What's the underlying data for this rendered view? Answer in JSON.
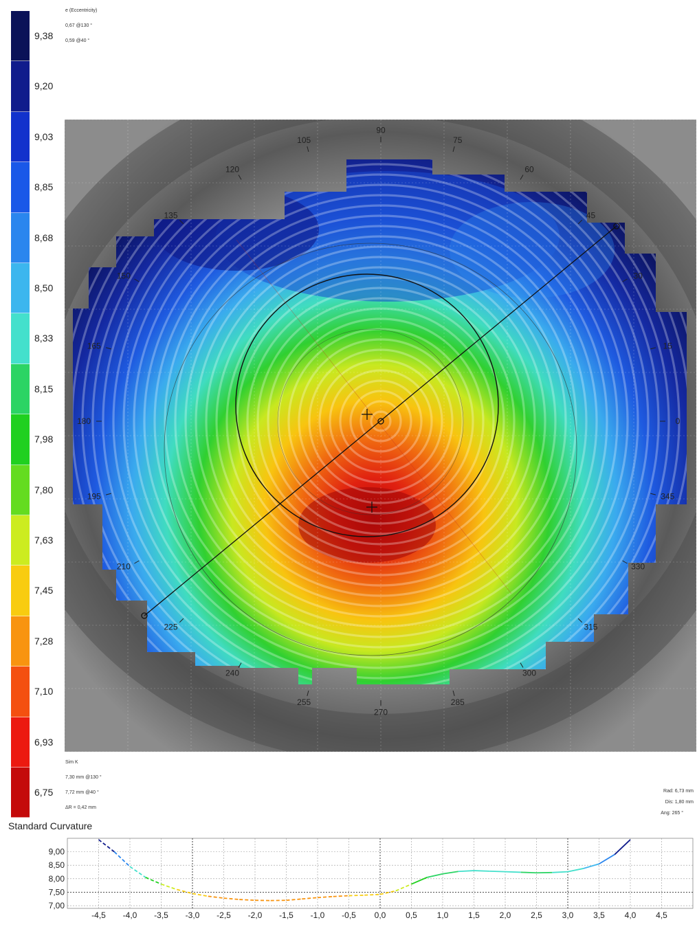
{
  "scale": {
    "values": [
      "9,38",
      "9,20",
      "9,03",
      "8,85",
      "8,68",
      "8,50",
      "8,33",
      "8,15",
      "7,98",
      "7,80",
      "7,63",
      "7,45",
      "7,28",
      "7,10",
      "6,93",
      "6,75"
    ],
    "colors": [
      "#0a1258",
      "#101c8c",
      "#1232cc",
      "#1a58e8",
      "#2a86ee",
      "#3cb6ee",
      "#44e0cc",
      "#2cd464",
      "#20d020",
      "#64dc20",
      "#ccec20",
      "#f8cc10",
      "#f89410",
      "#f45010",
      "#ec1a10",
      "#c40a0a"
    ]
  },
  "eccentricity": {
    "title": "e (Eccentricity)",
    "line1": "0,67 @130 °",
    "line2": "0,59 @40 °"
  },
  "simk": {
    "title": "Sim K",
    "line1": "7,30 mm @130 °",
    "line2": "7,72 mm @40 °",
    "line3": "ΔR = 0,42 mm"
  },
  "cursor": {
    "rad": "Rad: 6,73 mm",
    "dis": "Dis: 1,80 mm",
    "ang": "Ang: 265 °"
  },
  "map": {
    "degree_labels": [
      {
        "text": "90",
        "angle": 90
      },
      {
        "text": "105",
        "angle": 105
      },
      {
        "text": "75",
        "angle": 75
      },
      {
        "text": "120",
        "angle": 120
      },
      {
        "text": "60",
        "angle": 60
      },
      {
        "text": "135",
        "angle": 135
      },
      {
        "text": "45",
        "angle": 45
      },
      {
        "text": "150",
        "angle": 150
      },
      {
        "text": "30",
        "angle": 30
      },
      {
        "text": "165",
        "angle": 165
      },
      {
        "text": "15",
        "angle": 15
      },
      {
        "text": "180",
        "angle": 180
      },
      {
        "text": "0",
        "angle": 0
      },
      {
        "text": "195",
        "angle": 195
      },
      {
        "text": "345",
        "angle": 345
      },
      {
        "text": "210",
        "angle": 210
      },
      {
        "text": "330",
        "angle": 330
      },
      {
        "text": "225",
        "angle": 225
      },
      {
        "text": "315",
        "angle": 315
      },
      {
        "text": "240",
        "angle": 240
      },
      {
        "text": "300",
        "angle": 300
      },
      {
        "text": "255",
        "angle": 255
      },
      {
        "text": "285",
        "angle": 285
      },
      {
        "text": "270",
        "angle": 270
      }
    ]
  },
  "profile": {
    "title": "Standard Curvature",
    "y_ticks": [
      "9,00",
      "8,50",
      "8,00",
      "7,50",
      "7,00"
    ],
    "x_ticks": [
      "-4,5",
      "-4,0",
      "-3,5",
      "-3,0",
      "-2,5",
      "-2,0",
      "-1,5",
      "-1,0",
      "-0,5",
      "0,0",
      "0,5",
      "1,0",
      "1,5",
      "2,0",
      "2,5",
      "3,0",
      "3,5",
      "4,0",
      "4,5"
    ],
    "chart_data": {
      "type": "line",
      "title": "Standard Curvature",
      "x": [
        -4.5,
        -4.25,
        -4.0,
        -3.75,
        -3.5,
        -3.25,
        -3.0,
        -2.75,
        -2.5,
        -2.25,
        -2.0,
        -1.75,
        -1.5,
        -1.25,
        -1.0,
        -0.75,
        -0.5,
        -0.25,
        0.0,
        0.25,
        0.5,
        0.75,
        1.0,
        1.25,
        1.5,
        1.75,
        2.0,
        2.25,
        2.5,
        2.75,
        3.0,
        3.25,
        3.5,
        3.75,
        4.0
      ],
      "y": [
        9.45,
        9.0,
        8.45,
        8.05,
        7.8,
        7.6,
        7.45,
        7.35,
        7.28,
        7.23,
        7.2,
        7.19,
        7.2,
        7.25,
        7.3,
        7.34,
        7.37,
        7.39,
        7.42,
        7.55,
        7.8,
        8.05,
        8.18,
        8.27,
        8.3,
        8.28,
        8.26,
        8.24,
        8.22,
        8.23,
        8.26,
        8.38,
        8.55,
        8.9,
        9.45
      ],
      "ylim": [
        6.9,
        9.5
      ],
      "xlim": [
        -5.0,
        5.0
      ]
    }
  }
}
